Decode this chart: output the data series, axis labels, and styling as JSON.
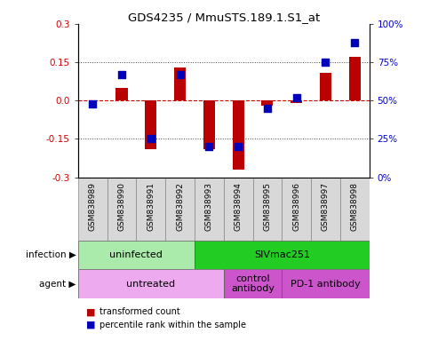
{
  "title": "GDS4235 / MmuSTS.189.1.S1_at",
  "samples": [
    "GSM838989",
    "GSM838990",
    "GSM838991",
    "GSM838992",
    "GSM838993",
    "GSM838994",
    "GSM838995",
    "GSM838996",
    "GSM838997",
    "GSM838998"
  ],
  "transformed_count": [
    0.0,
    0.05,
    -0.19,
    0.13,
    -0.19,
    -0.27,
    -0.02,
    -0.01,
    0.11,
    0.17
  ],
  "percentile_rank": [
    48,
    67,
    25,
    67,
    20,
    20,
    45,
    52,
    75,
    88
  ],
  "ylim": [
    -0.3,
    0.3
  ],
  "y2lim": [
    0,
    100
  ],
  "yticks": [
    -0.3,
    -0.15,
    0.0,
    0.15,
    0.3
  ],
  "y2ticks": [
    0,
    25,
    50,
    75,
    100
  ],
  "y2ticklabels": [
    "0%",
    "25%",
    "50%",
    "75%",
    "100%"
  ],
  "hlines": [
    -0.15,
    0.0,
    0.15
  ],
  "bar_color": "#bb0000",
  "dot_color": "#0000bb",
  "bar_width": 0.4,
  "infection_groups": [
    {
      "label": "uninfected",
      "start": 0,
      "end": 3,
      "color": "#aaeaaa"
    },
    {
      "label": "SIVmac251",
      "start": 4,
      "end": 9,
      "color": "#22cc22"
    }
  ],
  "agent_groups": [
    {
      "label": "untreated",
      "start": 0,
      "end": 4,
      "color": "#eeaaee"
    },
    {
      "label": "control\nantibody",
      "start": 5,
      "end": 6,
      "color": "#cc55cc"
    },
    {
      "label": "PD-1 antibody",
      "start": 7,
      "end": 9,
      "color": "#cc55cc"
    }
  ],
  "legend_bar_label": "transformed count",
  "legend_dot_label": "percentile rank within the sample",
  "infection_label": "infection",
  "agent_label": "agent"
}
